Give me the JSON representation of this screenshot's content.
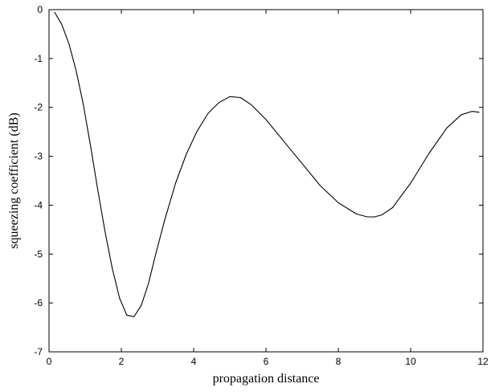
{
  "chart_data": {
    "type": "line",
    "title": "",
    "xlabel": "propagation distance",
    "ylabel": "squeezing coefficient (dB)",
    "xlim": [
      0,
      12
    ],
    "ylim": [
      -7,
      0
    ],
    "xticks": [
      0,
      2,
      4,
      6,
      8,
      10,
      12
    ],
    "yticks": [
      0,
      -1,
      -2,
      -3,
      -4,
      -5,
      -6,
      -7
    ],
    "grid": false,
    "legend": "none",
    "series": [
      {
        "color": "#000000",
        "x": [
          0.15,
          0.35,
          0.55,
          0.75,
          0.95,
          1.15,
          1.35,
          1.55,
          1.75,
          1.95,
          2.15,
          2.35,
          2.55,
          2.75,
          2.95,
          3.2,
          3.5,
          3.8,
          4.1,
          4.4,
          4.7,
          5.0,
          5.3,
          5.6,
          6.0,
          6.5,
          7.0,
          7.5,
          8.0,
          8.5,
          8.8,
          9.0,
          9.2,
          9.5,
          10.0,
          10.5,
          11.0,
          11.4,
          11.7,
          11.9
        ],
        "y": [
          -0.05,
          -0.3,
          -0.7,
          -1.25,
          -1.95,
          -2.8,
          -3.7,
          -4.55,
          -5.3,
          -5.9,
          -6.25,
          -6.28,
          -6.05,
          -5.6,
          -5.0,
          -4.3,
          -3.55,
          -2.95,
          -2.48,
          -2.12,
          -1.9,
          -1.78,
          -1.8,
          -1.95,
          -2.25,
          -2.7,
          -3.15,
          -3.6,
          -3.95,
          -4.18,
          -4.24,
          -4.24,
          -4.2,
          -4.05,
          -3.55,
          -2.95,
          -2.42,
          -2.15,
          -2.08,
          -2.1
        ]
      }
    ]
  }
}
